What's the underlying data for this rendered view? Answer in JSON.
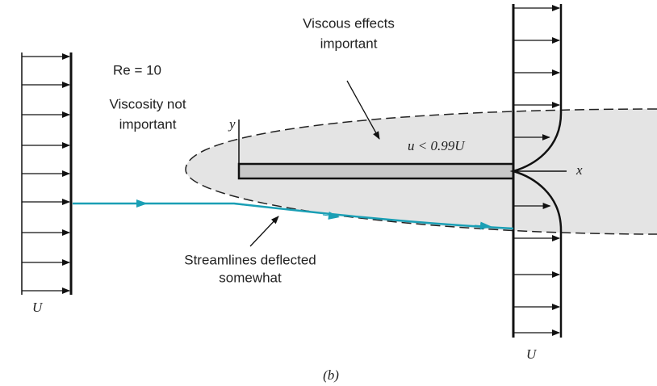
{
  "reynolds": "Re = 10",
  "outer_note": [
    "Viscosity not",
    "important"
  ],
  "viscous_note": [
    "Viscous effects",
    "important"
  ],
  "boundary_condition": "u < 0.99U",
  "axes": {
    "y": "y",
    "x": "x"
  },
  "upstream_velocity": "U",
  "downstream_velocity": "U",
  "streamline_note": [
    "Streamlines deflected",
    "somewhat"
  ],
  "caption": "(b)"
}
